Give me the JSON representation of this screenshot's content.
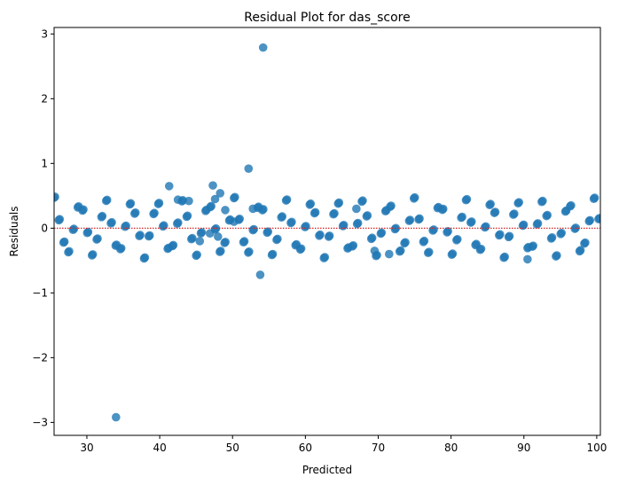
{
  "chart_data": {
    "type": "scatter",
    "title": "Residual Plot for das_score",
    "xlabel": "Predicted",
    "ylabel": "Residuals",
    "xlim": [
      25.5,
      100.5
    ],
    "ylim": [
      -3.2,
      3.1
    ],
    "xticks": [
      30,
      40,
      50,
      60,
      70,
      80,
      90,
      100
    ],
    "yticks": [
      -3,
      -2,
      -1,
      0,
      1,
      2,
      3
    ],
    "ytick_labels": [
      "−3",
      "−2",
      "−1",
      "0",
      "1",
      "2",
      "3"
    ],
    "grid": false,
    "point_color": "#1f77b4",
    "reference_line": {
      "y": 0,
      "color": "#d62728",
      "style": "dotted"
    },
    "band_amplitude": 0.47,
    "band_period": 3.53,
    "band_x_range": [
      25.5,
      100.5
    ],
    "band_x_step": 0.65,
    "points": [
      [
        34.0,
        -2.92
      ],
      [
        54.2,
        2.79
      ],
      [
        52.2,
        0.92
      ],
      [
        53.8,
        -0.72
      ],
      [
        41.3,
        0.65
      ],
      [
        47.3,
        0.66
      ],
      [
        48.3,
        0.54
      ],
      [
        47.6,
        0.45
      ],
      [
        42.5,
        0.44
      ],
      [
        52.8,
        0.3
      ],
      [
        46.9,
        -0.08
      ],
      [
        48.0,
        -0.13
      ],
      [
        67.0,
        0.3
      ],
      [
        69.5,
        -0.35
      ],
      [
        71.5,
        -0.4
      ],
      [
        90.5,
        -0.48
      ],
      [
        49.0,
        0.28
      ],
      [
        44.0,
        0.42
      ],
      [
        50.2,
        0.1
      ],
      [
        45.5,
        -0.2
      ]
    ]
  }
}
